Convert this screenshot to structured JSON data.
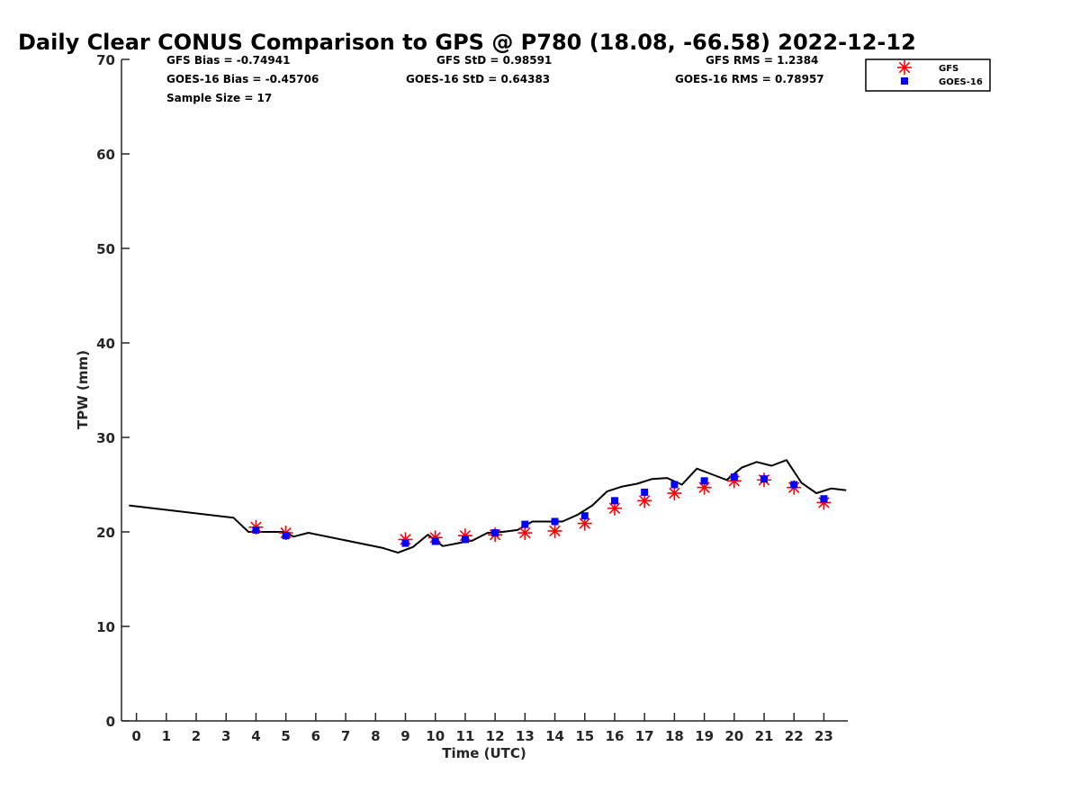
{
  "chart_data": {
    "type": "line",
    "title": "Daily Clear CONUS Comparison to GPS @ P780 (18.08, -66.58) 2022-12-12",
    "xlabel": "Time (UTC)",
    "ylabel": "TPW (mm)",
    "xlim": [
      -0.5,
      23.8
    ],
    "ylim": [
      0,
      70
    ],
    "x_ticks": [
      "0",
      "1",
      "2",
      "3",
      "4",
      "5",
      "6",
      "7",
      "8",
      "9",
      "10",
      "11",
      "12",
      "13",
      "14",
      "15",
      "16",
      "17",
      "18",
      "19",
      "20",
      "21",
      "22",
      "23"
    ],
    "y_ticks": [
      "0",
      "10",
      "20",
      "30",
      "40",
      "50",
      "60",
      "70"
    ],
    "grid": false,
    "legend_position": "top-right",
    "stats": {
      "gfs_bias": "GFS Bias = -0.74941",
      "goes_bias": "GOES-16 Bias = -0.45706",
      "sample_size": "Sample Size = 17",
      "gfs_std": "GFS StD = 0.98591",
      "goes_std": "GOES-16 StD = 0.64383",
      "gfs_rms": "GFS RMS = 1.2384",
      "goes_rms": "GOES-16 RMS = 0.78957"
    },
    "series": [
      {
        "name": "",
        "style": "line",
        "color": "#000000",
        "x": [
          -0.25,
          3.25,
          3.75,
          4.0,
          4.5,
          5.0,
          5.25,
          5.75,
          8.25,
          8.75,
          9.25,
          9.75,
          10.25,
          10.75,
          11.25,
          11.75,
          12.25,
          12.75,
          13.25,
          13.75,
          14.25,
          14.75,
          15.25,
          15.75,
          16.25,
          16.75,
          17.25,
          17.75,
          18.25,
          18.75,
          19.25,
          19.75,
          20.25,
          20.75,
          21.25,
          21.75,
          22.25,
          22.75,
          23.25,
          23.75
        ],
        "y": [
          22.8,
          21.5,
          20.0,
          20.0,
          20.0,
          20.0,
          19.5,
          19.9,
          18.3,
          17.8,
          18.4,
          19.7,
          18.5,
          18.8,
          19.1,
          19.9,
          20.0,
          20.2,
          21.1,
          21.1,
          21.1,
          21.8,
          22.8,
          24.3,
          24.8,
          25.1,
          25.6,
          25.7,
          25.0,
          26.7,
          26.1,
          25.5,
          26.8,
          27.4,
          27.0,
          27.6,
          25.2,
          24.1,
          24.6,
          24.4
        ]
      },
      {
        "name": "GFS",
        "style": "asterisk",
        "color": "#ff0000",
        "x": [
          4,
          5,
          9,
          10,
          11,
          12,
          13,
          14,
          15,
          16,
          17,
          18,
          19,
          20,
          21,
          22,
          23
        ],
        "y": [
          20.5,
          19.9,
          19.2,
          19.4,
          19.6,
          19.7,
          19.9,
          20.1,
          20.9,
          22.5,
          23.3,
          24.1,
          24.7,
          25.4,
          25.5,
          24.7,
          23.1
        ]
      },
      {
        "name": "GOES-16",
        "style": "square",
        "color": "#0000ff",
        "x": [
          4,
          5,
          9,
          10,
          11,
          12,
          13,
          14,
          15,
          16,
          17,
          18,
          19,
          20,
          21,
          22,
          23
        ],
        "y": [
          20.2,
          19.6,
          18.8,
          19.0,
          19.2,
          19.9,
          20.8,
          21.1,
          21.7,
          23.3,
          24.2,
          25.0,
          25.4,
          25.8,
          25.6,
          25.0,
          23.5
        ]
      }
    ]
  }
}
